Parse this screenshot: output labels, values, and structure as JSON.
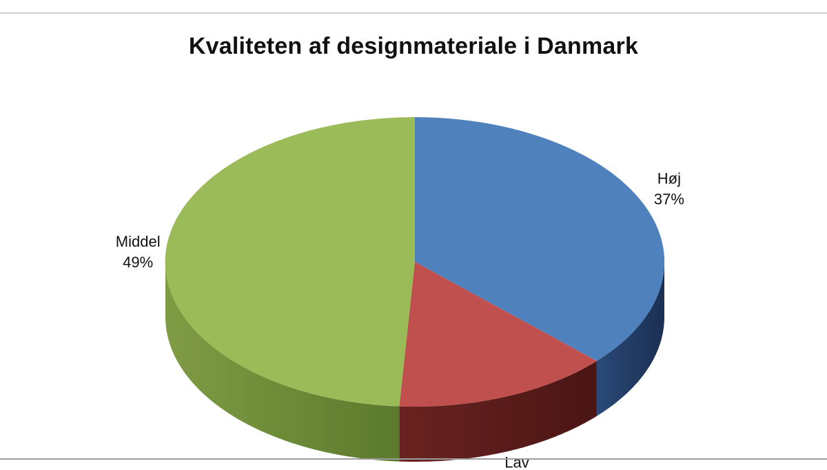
{
  "chart_data": {
    "type": "pie",
    "title": "Kvaliteten af designmateriale i Danmark",
    "slices": [
      {
        "label": "Høj",
        "value": 37,
        "value_label": "37%",
        "color": "#4F81BD"
      },
      {
        "label": "Lav",
        "value": 14,
        "value_label": "14%",
        "color": "#C0504D"
      },
      {
        "label": "Middel",
        "value": 49,
        "value_label": "49%",
        "color": "#9BBB59"
      }
    ],
    "legend": "none",
    "style": "3d"
  }
}
